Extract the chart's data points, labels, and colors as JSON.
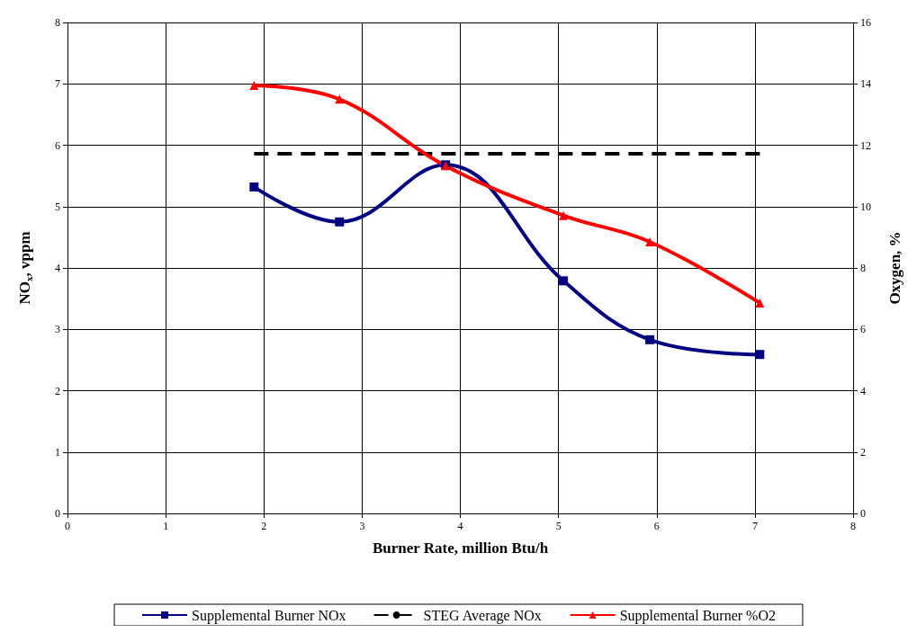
{
  "chart_data": {
    "type": "line",
    "xlabel": "Burner Rate, million Btu/h",
    "ylabel": "NO$_{x}$, vppm",
    "y2label": "Oxygen, %",
    "xlim": [
      0,
      8
    ],
    "xticks": [
      0,
      1,
      2,
      3,
      4,
      5,
      6,
      7,
      8
    ],
    "ylim": [
      0,
      8
    ],
    "yticks": [
      0,
      1,
      2,
      3,
      4,
      5,
      6,
      7,
      8
    ],
    "y2lim": [
      0,
      16
    ],
    "y2ticks": [
      0,
      2,
      4,
      6,
      8,
      10,
      12,
      14,
      16
    ],
    "grid": true,
    "legend": "bottom",
    "series": [
      {
        "name": "Supplemental Burner NOx",
        "color": "#000080",
        "marker": "square",
        "line_style": "solid",
        "x": [
          1.9,
          2.77,
          3.85,
          5.05,
          5.93,
          7.05
        ],
        "values": [
          5.32,
          4.75,
          5.68,
          3.79,
          2.83,
          2.59
        ]
      },
      {
        "name": "STEG Average NOx",
        "color": "#000000",
        "marker": "none",
        "line_style": "dashed",
        "x": [
          1.9,
          7.05
        ],
        "values": [
          5.86,
          5.86
        ]
      },
      {
        "name": "Supplemental Burner %O2",
        "color": "#ff0000",
        "marker": "triangle",
        "line_style": "solid",
        "axis": "y2",
        "x": [
          1.9,
          2.77,
          3.85,
          5.05,
          5.93,
          7.05
        ],
        "values": [
          13.95,
          13.5,
          11.33,
          9.71,
          8.85,
          6.86
        ]
      }
    ]
  }
}
